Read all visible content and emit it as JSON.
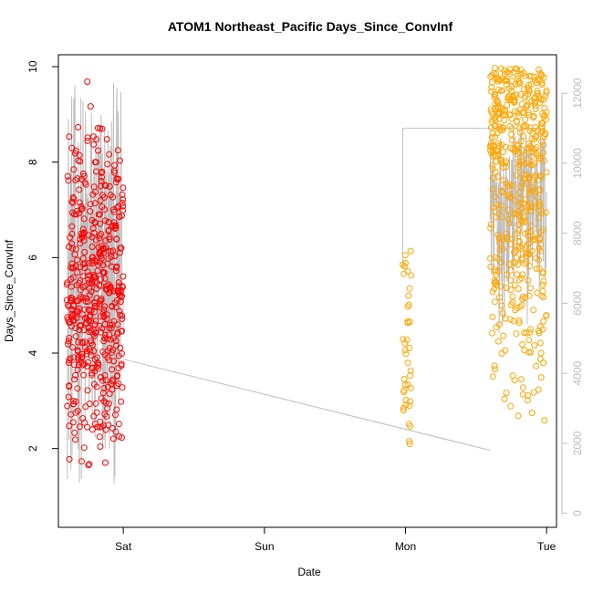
{
  "chart_data": {
    "type": "scatter",
    "title": "ATOM1 Northeast_Pacific Days_Since_ConvInf",
    "xlabel": "Date",
    "ylabel": "Days_Since_ConvInf",
    "x_ticks": [
      "Sat",
      "Sun",
      "Mon",
      "Tue"
    ],
    "x_tick_days": [
      1,
      2,
      3,
      4
    ],
    "xlim": [
      0.54,
      4.07
    ],
    "y_ticks": [
      2,
      4,
      6,
      8,
      10
    ],
    "ylim": [
      0.35,
      10.25
    ],
    "y2_ticks": [
      0,
      2000,
      4000,
      6000,
      8000,
      10000,
      12000
    ],
    "y2lim": [
      -400,
      13100
    ],
    "colors": {
      "series1": "#ff0000",
      "series2": "#ffa500",
      "line": "#bebebe",
      "axis": "#000000",
      "right_axis": "#bdbdbd"
    },
    "series": [
      {
        "color": "#ff0000",
        "x_range": [
          0.6,
          1.0
        ],
        "y_range": [
          0.6,
          9.8
        ],
        "count": 520
      },
      {
        "color": "#ffa500",
        "x_range": [
          2.98,
          3.04
        ],
        "y_range": [
          1.7,
          6.2
        ],
        "count": 40
      },
      {
        "color": "#ffa500",
        "x_range": [
          3.6,
          4.0
        ],
        "y_range": [
          2.3,
          10.0
        ],
        "count": 520
      }
    ],
    "line_series": {
      "axis": "right",
      "segments": [
        {
          "x": [
            0.6,
            1.0
          ],
          "y_range": [
            800,
            12300
          ]
        },
        {
          "x": [
            1.0,
            3.6
          ],
          "y": [
            4400,
            1800
          ]
        },
        {
          "x": [
            2.98,
            2.98
          ],
          "y": [
            7000,
            11000
          ]
        },
        {
          "x": [
            2.98,
            3.95
          ],
          "y": [
            11000,
            11000
          ]
        },
        {
          "x": [
            3.6,
            4.0
          ],
          "y_range": [
            5000,
            11000
          ]
        }
      ]
    }
  }
}
